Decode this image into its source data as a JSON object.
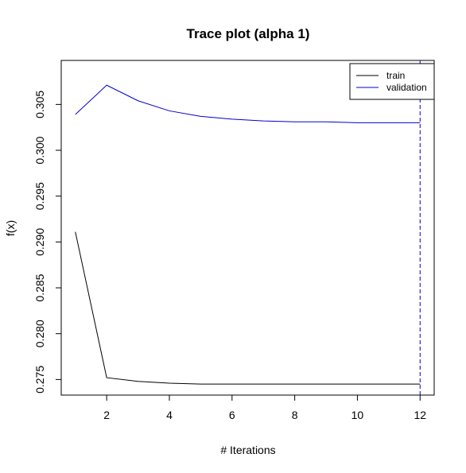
{
  "chart_data": {
    "type": "line",
    "title": "Trace plot (alpha 1)",
    "xlabel": "# Iterations",
    "ylabel": "f(x)",
    "xlim": [
      0.55,
      12.45
    ],
    "ylim": [
      0.2733,
      0.3098
    ],
    "xticks": [
      2,
      4,
      6,
      8,
      10,
      12
    ],
    "yticks": [
      0.275,
      0.28,
      0.285,
      0.29,
      0.295,
      0.3,
      0.305
    ],
    "ytick_labels": [
      "0.275",
      "0.280",
      "0.285",
      "0.290",
      "0.295",
      "0.300",
      "0.305"
    ],
    "x": [
      1,
      2,
      3,
      4,
      5,
      6,
      7,
      8,
      9,
      10,
      11,
      12
    ],
    "series": [
      {
        "name": "train",
        "color": "#000000",
        "values": [
          0.2911,
          0.2752,
          0.2748,
          0.2746,
          0.2745,
          0.2745,
          0.2745,
          0.2745,
          0.2745,
          0.2745,
          0.2745,
          0.2745
        ]
      },
      {
        "name": "validation",
        "color": "#0000cc",
        "values": [
          0.3039,
          0.3071,
          0.3054,
          0.3043,
          0.3037,
          0.3034,
          0.3032,
          0.3031,
          0.3031,
          0.303,
          0.303,
          0.303
        ]
      }
    ],
    "vline": {
      "x": 12,
      "color": "#0000cc",
      "style": "dashed"
    },
    "legend_position": "top-right",
    "grid": false
  }
}
